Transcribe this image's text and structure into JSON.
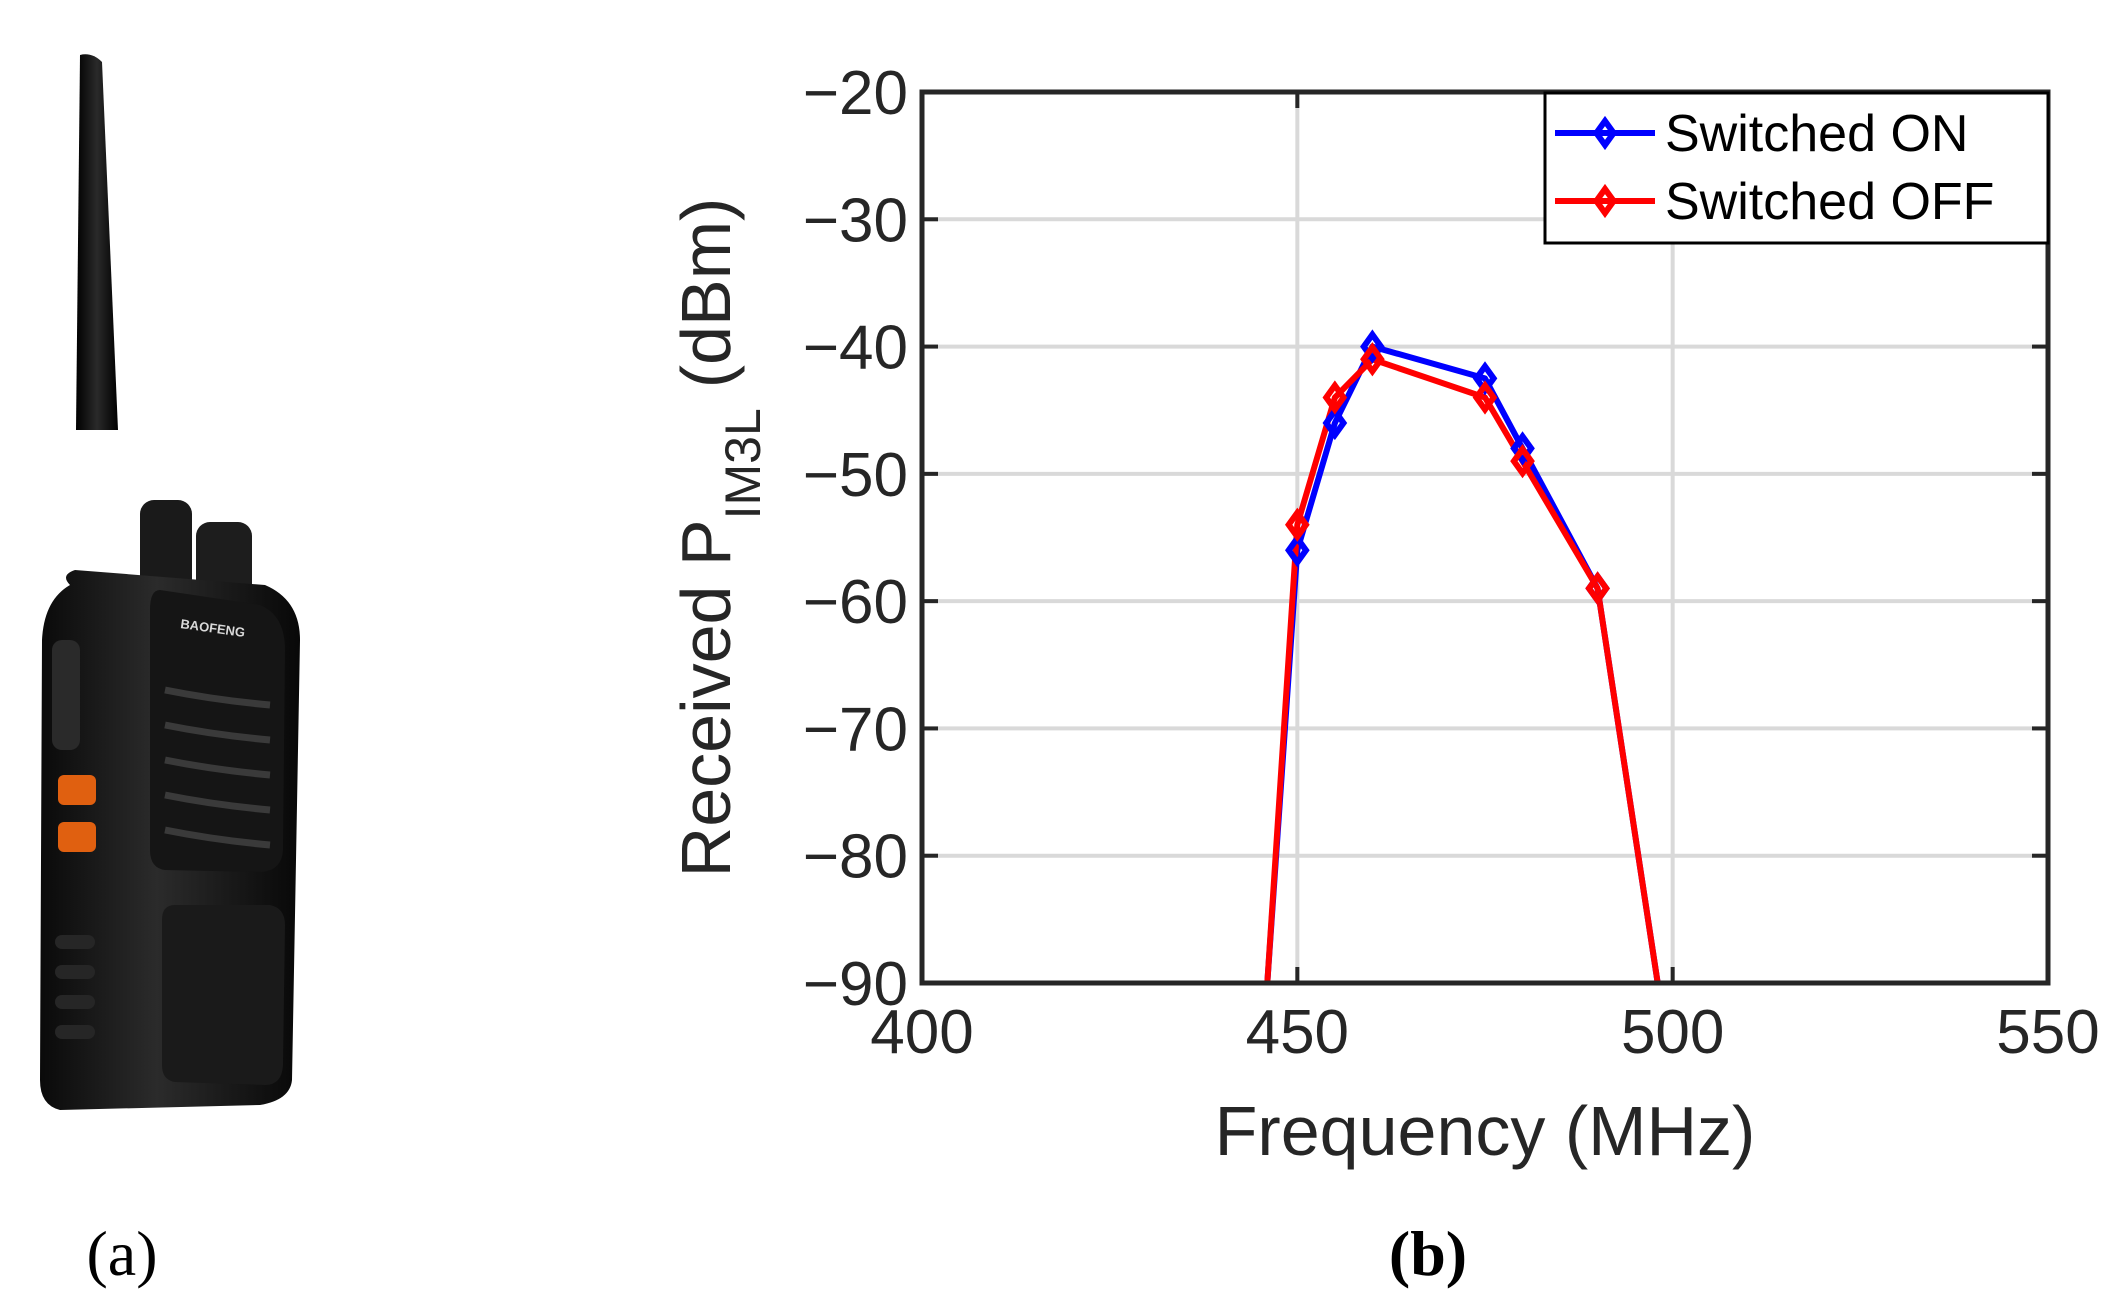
{
  "panels": {
    "a": {
      "label": "(a)",
      "device_brand": "BAOFENG"
    },
    "b": {
      "label": "(b)"
    }
  },
  "colors": {
    "series_on": "#0000ff",
    "series_off": "#ff0000",
    "grid": "#d9d9d9",
    "axis": "#262626"
  },
  "chart_data": {
    "type": "line",
    "title": "",
    "xlabel": "Frequency (MHz)",
    "ylabel": {
      "prefix": "Received P",
      "subscript": "IM3L",
      "suffix": "(dBm)"
    },
    "xlim": [
      400,
      550
    ],
    "ylim": [
      -90,
      -20
    ],
    "xticks": [
      400,
      450,
      500,
      550
    ],
    "xtick_labels": [
      "400",
      "450",
      "500",
      "550"
    ],
    "yticks": [
      -20,
      -30,
      -40,
      -50,
      -60,
      -70,
      -80,
      -90
    ],
    "ytick_labels": [
      "−20",
      "−30",
      "−40",
      "−50",
      "−60",
      "−70",
      "−80",
      "−90"
    ],
    "grid": true,
    "legend_position": "top-right",
    "series": [
      {
        "name": "Switched ON",
        "color": "#0000ff",
        "marker": "diamond",
        "x": [
          446,
          450,
          455,
          460,
          475,
          480,
          490,
          498
        ],
        "y": [
          -90,
          -56,
          -46,
          -40,
          -42.5,
          -48,
          -59,
          -90
        ],
        "marker_x": [
          450,
          455,
          460,
          475,
          480,
          490
        ],
        "marker_y": [
          -56,
          -46,
          -40,
          -42.5,
          -48,
          -59
        ]
      },
      {
        "name": "Switched OFF",
        "color": "#ff0000",
        "marker": "diamond",
        "x": [
          446,
          450,
          455,
          460,
          475,
          480,
          490,
          498
        ],
        "y": [
          -90,
          -54,
          -44,
          -41,
          -44,
          -49,
          -59,
          -90
        ],
        "marker_x": [
          450,
          455,
          460,
          475,
          480,
          490
        ],
        "marker_y": [
          -54,
          -44,
          -41,
          -44,
          -49,
          -59
        ]
      }
    ]
  }
}
